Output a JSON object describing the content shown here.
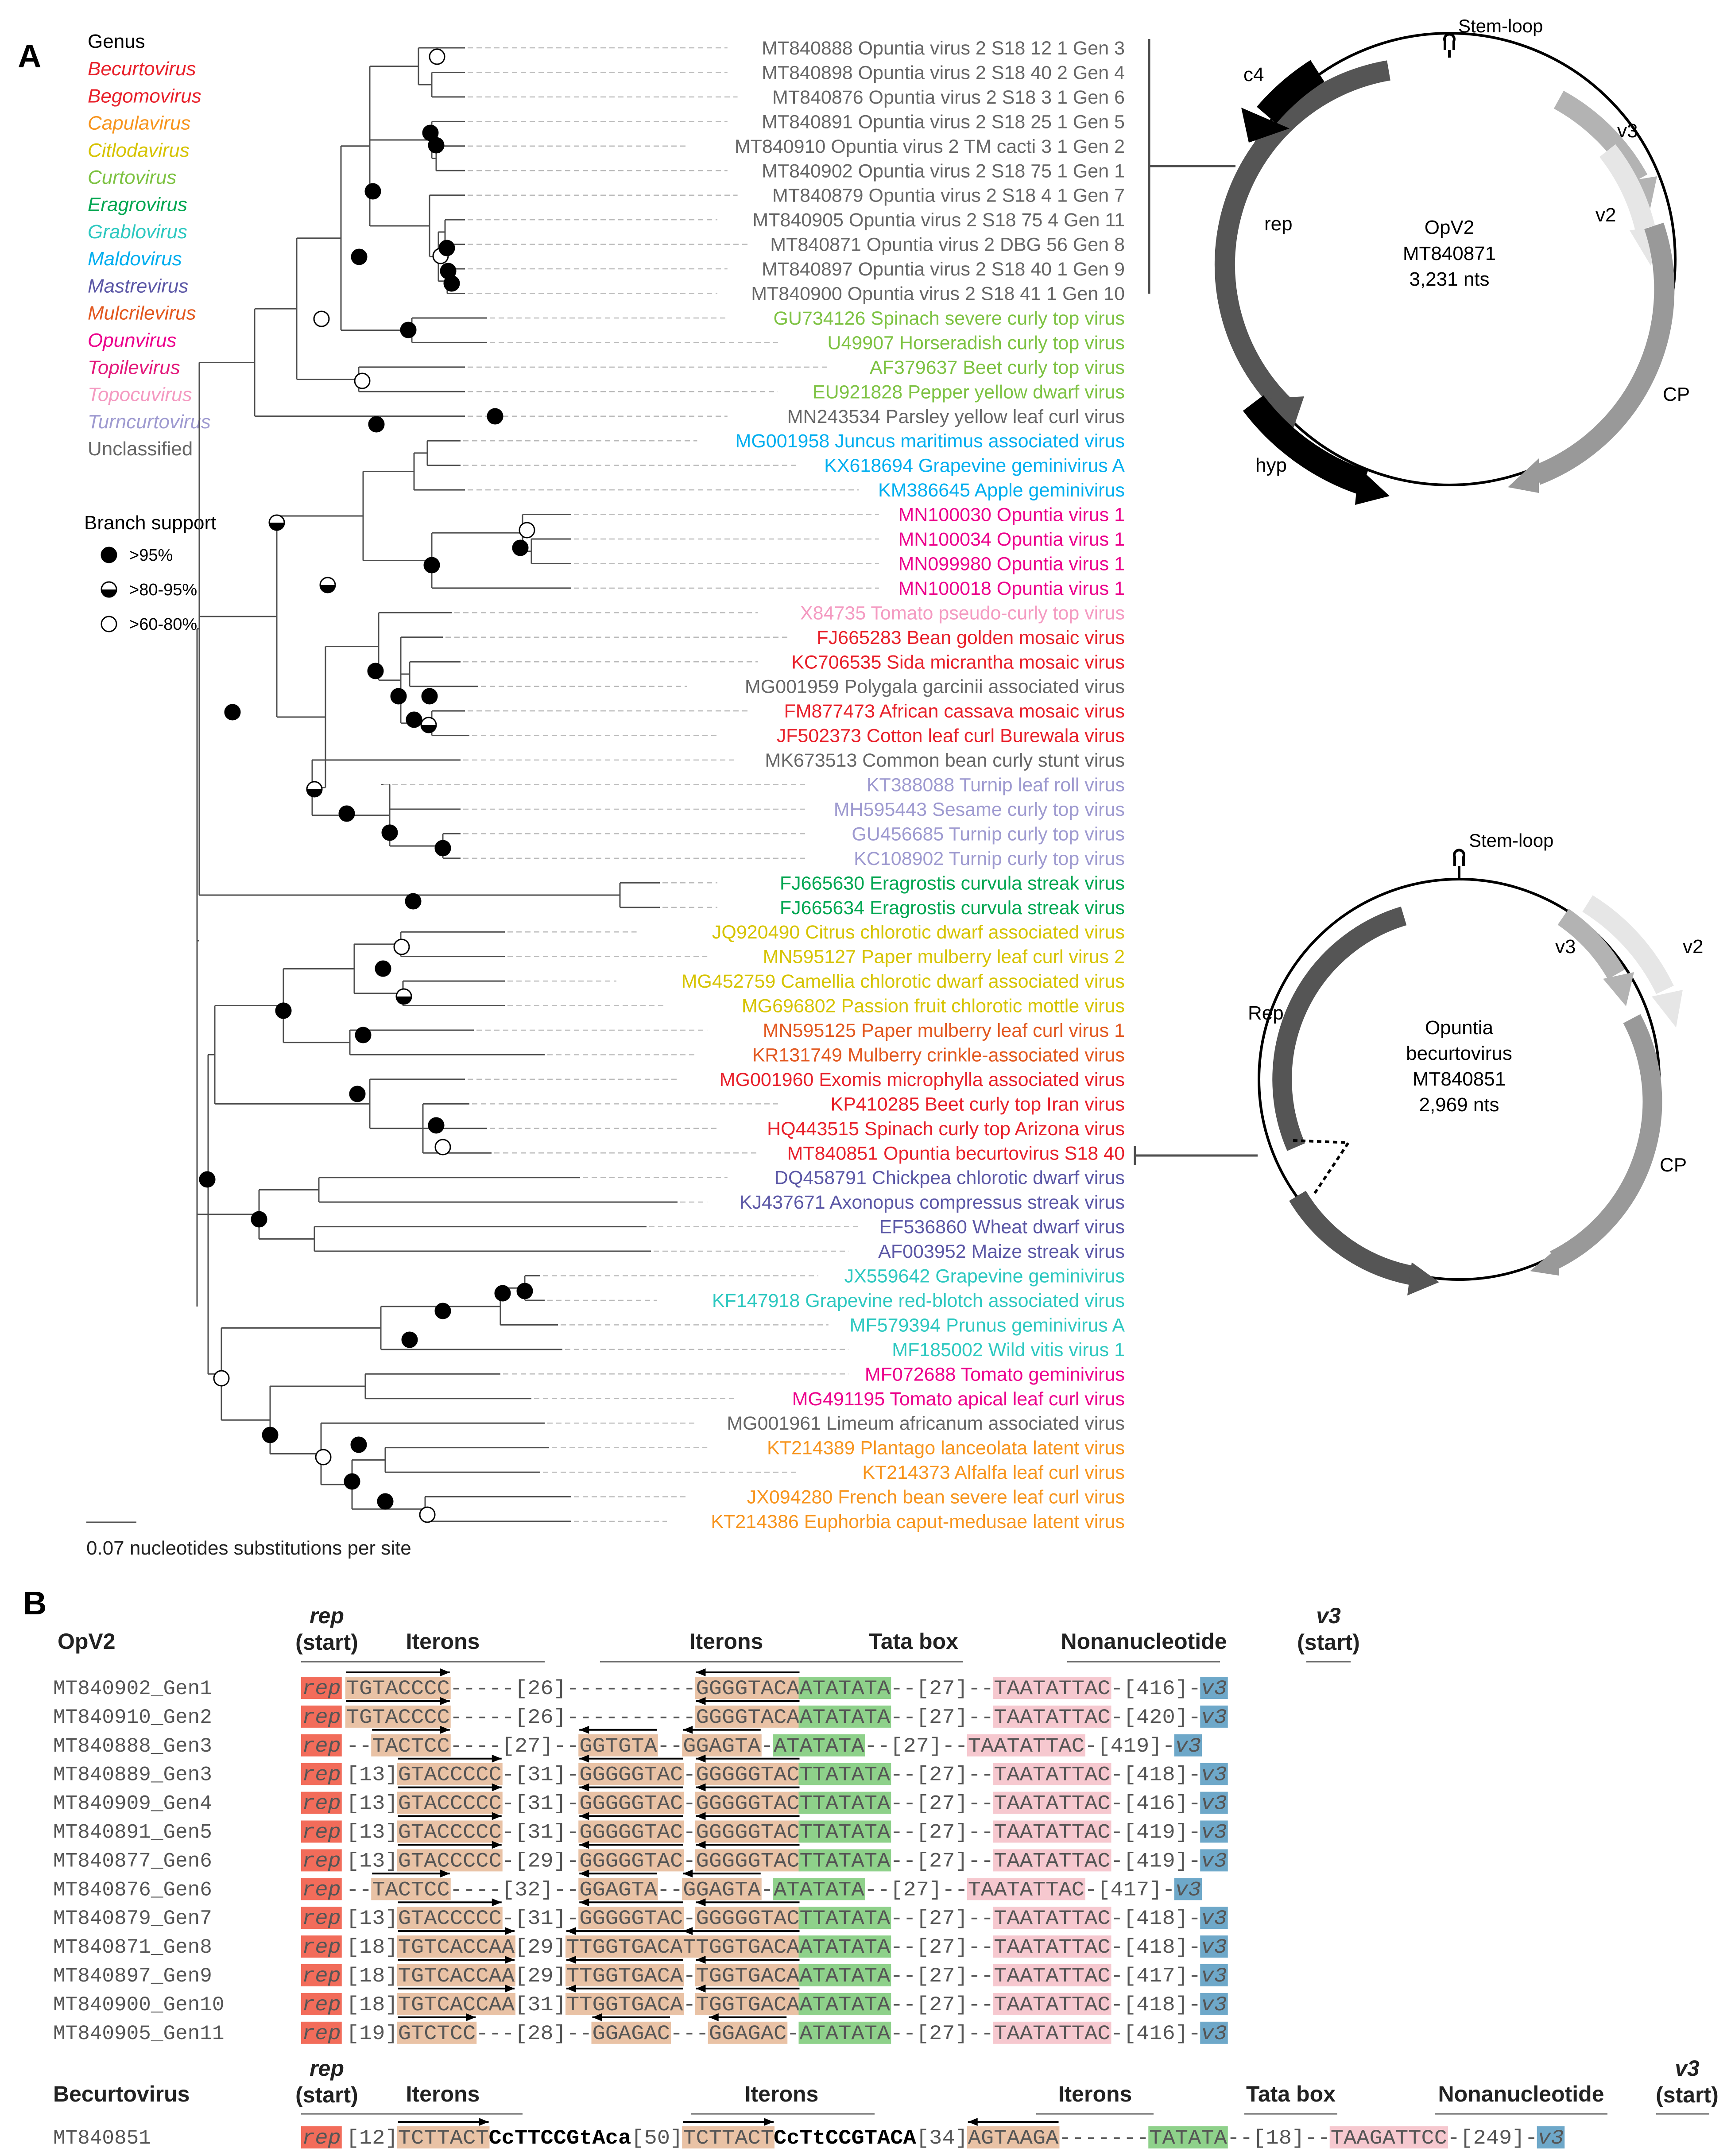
{
  "panels": {
    "a": "A",
    "b": "B"
  },
  "genus_legend": {
    "title": "Genus",
    "items": [
      {
        "name": "Becurtovirus",
        "color": "#e8202a"
      },
      {
        "name": "Begomovirus",
        "color": "#e8202a"
      },
      {
        "name": "Capulavirus",
        "color": "#f7941d"
      },
      {
        "name": "Citlodavirus",
        "color": "#d6c300"
      },
      {
        "name": "Curtovirus",
        "color": "#7dc242"
      },
      {
        "name": "Eragrovirus",
        "color": "#00a651"
      },
      {
        "name": "Grablovirus",
        "color": "#2dc8c0"
      },
      {
        "name": "Maldovirus",
        "color": "#00aeef"
      },
      {
        "name": "Mastrevirus",
        "color": "#5b57a6"
      },
      {
        "name": "Mulcrilevirus",
        "color": "#e2571e"
      },
      {
        "name": "Opunvirus",
        "color": "#ec008c"
      },
      {
        "name": "Topilevirus",
        "color": "#e3197b"
      },
      {
        "name": "Topocuvirus",
        "color": "#f49ac1"
      },
      {
        "name": "Turncurtovirus",
        "color": "#9e9ad0"
      },
      {
        "name": "Unclassified",
        "color": "#666666"
      }
    ]
  },
  "support_legend": {
    "title": "Branch support",
    "items": [
      {
        "label": ">95%",
        "fill": "full"
      },
      {
        "label": ">80-95%",
        "fill": "half"
      },
      {
        "label": ">60-80%",
        "fill": "empty"
      }
    ]
  },
  "scale_bar": {
    "label": "0.07 nucleotides substitutions per site"
  },
  "taxa": [
    {
      "label": "MT840888 Opuntia virus 2 S18 12 1 Gen 3",
      "color": "#666666"
    },
    {
      "label": "MT840898 Opuntia virus 2 S18 40 2 Gen 4",
      "color": "#666666"
    },
    {
      "label": "MT840876 Opuntia virus 2 S18 3 1 Gen 6",
      "color": "#666666"
    },
    {
      "label": "MT840891 Opuntia virus 2 S18 25 1 Gen 5",
      "color": "#666666"
    },
    {
      "label": "MT840910 Opuntia virus 2 TM cacti 3 1 Gen 2",
      "color": "#666666"
    },
    {
      "label": "MT840902 Opuntia virus 2 S18 75 1 Gen 1",
      "color": "#666666"
    },
    {
      "label": "MT840879 Opuntia virus 2 S18 4 1 Gen 7",
      "color": "#666666"
    },
    {
      "label": "MT840905 Opuntia virus 2 S18 75 4 Gen 11",
      "color": "#666666"
    },
    {
      "label": "MT840871 Opuntia virus 2 DBG 56 Gen 8",
      "color": "#666666"
    },
    {
      "label": "MT840897 Opuntia virus 2 S18 40 1 Gen 9",
      "color": "#666666"
    },
    {
      "label": "MT840900 Opuntia virus 2 S18 41 1 Gen 10",
      "color": "#666666"
    },
    {
      "label": "GU734126 Spinach severe curly top virus",
      "color": "#7dc242"
    },
    {
      "label": "U49907 Horseradish curly top virus",
      "color": "#7dc242"
    },
    {
      "label": "AF379637 Beet curly top virus",
      "color": "#7dc242"
    },
    {
      "label": "EU921828 Pepper yellow dwarf virus",
      "color": "#7dc242"
    },
    {
      "label": "MN243534 Parsley yellow leaf curl virus",
      "color": "#666666"
    },
    {
      "label": "MG001958 Juncus maritimus associated virus",
      "color": "#00aeef"
    },
    {
      "label": "KX618694 Grapevine geminivirus A",
      "color": "#00aeef"
    },
    {
      "label": "KM386645 Apple geminivirus",
      "color": "#00aeef"
    },
    {
      "label": "MN100030 Opuntia virus 1",
      "color": "#ec008c"
    },
    {
      "label": "MN100034 Opuntia virus 1",
      "color": "#ec008c"
    },
    {
      "label": "MN099980 Opuntia virus 1",
      "color": "#ec008c"
    },
    {
      "label": "MN100018 Opuntia virus 1",
      "color": "#ec008c"
    },
    {
      "label": "X84735 Tomato pseudo-curly top virus",
      "color": "#f49ac1"
    },
    {
      "label": "FJ665283 Bean golden mosaic virus",
      "color": "#e8202a"
    },
    {
      "label": "KC706535 Sida micrantha mosaic virus",
      "color": "#e8202a"
    },
    {
      "label": "MG001959 Polygala garcinii associated virus",
      "color": "#666666"
    },
    {
      "label": "FM877473 African cassava mosaic virus",
      "color": "#e8202a"
    },
    {
      "label": "JF502373 Cotton leaf curl Burewala virus",
      "color": "#e8202a"
    },
    {
      "label": "MK673513 Common bean curly stunt virus",
      "color": "#666666"
    },
    {
      "label": "KT388088 Turnip leaf roll virus",
      "color": "#9e9ad0"
    },
    {
      "label": "MH595443 Sesame curly top virus",
      "color": "#9e9ad0"
    },
    {
      "label": "GU456685 Turnip curly top virus",
      "color": "#9e9ad0"
    },
    {
      "label": "KC108902 Turnip curly top virus",
      "color": "#9e9ad0"
    },
    {
      "label": "FJ665630 Eragrostis curvula streak virus",
      "color": "#00a651"
    },
    {
      "label": "FJ665634 Eragrostis curvula streak virus",
      "color": "#00a651"
    },
    {
      "label": "JQ920490 Citrus chlorotic dwarf associated virus",
      "color": "#d6c300"
    },
    {
      "label": "MN595127 Paper mulberry leaf curl virus 2",
      "color": "#d6c300"
    },
    {
      "label": "MG452759 Camellia chlorotic dwarf associated virus",
      "color": "#d6c300"
    },
    {
      "label": "MG696802 Passion fruit chlorotic mottle virus",
      "color": "#d6c300"
    },
    {
      "label": "MN595125 Paper mulberry leaf curl virus 1",
      "color": "#e2571e"
    },
    {
      "label": "KR131749 Mulberry crinkle-associated virus",
      "color": "#e2571e"
    },
    {
      "label": "MG001960 Exomis microphylla associated virus",
      "color": "#e8202a"
    },
    {
      "label": "KP410285 Beet curly top Iran virus",
      "color": "#e8202a"
    },
    {
      "label": "HQ443515 Spinach curly top Arizona virus",
      "color": "#e8202a"
    },
    {
      "label": "MT840851 Opuntia becurtovirus S18 40",
      "color": "#e8202a"
    },
    {
      "label": "DQ458791 Chickpea chlorotic dwarf virus",
      "color": "#5b57a6"
    },
    {
      "label": "KJ437671 Axonopus compressus streak virus",
      "color": "#5b57a6"
    },
    {
      "label": "EF536860 Wheat dwarf virus",
      "color": "#5b57a6"
    },
    {
      "label": "AF003952 Maize streak virus",
      "color": "#5b57a6"
    },
    {
      "label": "JX559642 Grapevine geminivirus",
      "color": "#2dc8c0"
    },
    {
      "label": "KF147918 Grapevine red-blotch associated virus",
      "color": "#2dc8c0"
    },
    {
      "label": "MF579394 Prunus geminivirus A",
      "color": "#2dc8c0"
    },
    {
      "label": "MF185002 Wild vitis virus 1",
      "color": "#2dc8c0"
    },
    {
      "label": "MF072688 Tomato geminivirus",
      "color": "#ec008c"
    },
    {
      "label": "MG491195 Tomato apical leaf curl virus",
      "color": "#ec008c"
    },
    {
      "label": "MG001961 Limeum africanum associated virus",
      "color": "#666666"
    },
    {
      "label": "KT214389 Plantago lanceolata latent virus",
      "color": "#f7941d"
    },
    {
      "label": "KT214373 Alfalfa leaf curl virus",
      "color": "#f7941d"
    },
    {
      "label": "JX094280 French bean severe leaf curl virus",
      "color": "#f7941d"
    },
    {
      "label": "KT214386 Euphorbia caput-medusae latent virus",
      "color": "#f7941d"
    }
  ],
  "genome_opv2": {
    "stem_loop": "Stem-loop",
    "name": "OpV2",
    "accession": "MT840871",
    "size": "3,231 nts",
    "orfs": {
      "c4": "c4",
      "v3": "v3",
      "v2": "v2",
      "rep": "rep",
      "cp": "CP",
      "hyp": "hyp"
    }
  },
  "genome_becurto": {
    "stem_loop": "Stem-loop",
    "name_line1": "Opuntia",
    "name_line2": "becurtovirus",
    "accession": "MT840851",
    "size": "2,969 nts",
    "orfs": {
      "v3": "v3",
      "v2": "v2",
      "rep": "Rep",
      "cp": "CP"
    }
  },
  "alignment_opv2": {
    "group": "OpV2",
    "headers": {
      "rep_it": "rep",
      "rep_start": "(start)",
      "iterons1": "Iterons",
      "iterons2": "Iterons",
      "tata": "Tata box",
      "nona": "Nonanucleotide",
      "v3_it": "v3",
      "v3_start": "(start)"
    },
    "rep_tag": "rep",
    "v3_tag": "v3",
    "rows": [
      {
        "name": "MT840902_Gen1",
        "pre": "",
        "it1": "TGTACCCC",
        "mid": "-----[26]----------",
        "it2": "",
        "gap2": "",
        "it3": "GGGGTACA",
        "tata": "ATATATA",
        "g1": "--[27]--",
        "nona": "TAATATTAC",
        "g2": "-[416]-"
      },
      {
        "name": "MT840910_Gen2",
        "pre": "",
        "it1": "TGTACCCC",
        "mid": "-----[26]----------",
        "it2": "",
        "gap2": "",
        "it3": "GGGGTACA",
        "tata": "ATATATA",
        "g1": "--[27]--",
        "nona": "TAATATTAC",
        "g2": "-[420]-"
      },
      {
        "name": "MT840888_Gen3",
        "pre": "--",
        "it1": "TACTCC",
        "mid": "----[27]--",
        "it2": "GGTGTA",
        "gap2": "--",
        "it3": "GGAGTA",
        "tata": "-ATATATA",
        "g1": "--[27]--",
        "nona": "TAATATTAC",
        "g2": "-[419]-"
      },
      {
        "name": "MT840889_Gen3",
        "pre": "[13]",
        "it1": "GTACCCCC",
        "mid": "-[31]-",
        "it2": "GGGGGTAC",
        "gap2": "-",
        "it3": "GGGGGTAC",
        "tata": "TTATATA",
        "g1": "--[27]--",
        "nona": "TAATATTAC",
        "g2": "-[418]-"
      },
      {
        "name": "MT840909_Gen4",
        "pre": "[13]",
        "it1": "GTACCCCC",
        "mid": "-[31]-",
        "it2": "GGGGGTAC",
        "gap2": "-",
        "it3": "GGGGGTAC",
        "tata": "TTATATA",
        "g1": "--[27]--",
        "nona": "TAATATTAC",
        "g2": "-[416]-"
      },
      {
        "name": "MT840891_Gen5",
        "pre": "[13]",
        "it1": "GTACCCCC",
        "mid": "-[31]-",
        "it2": "GGGGGTAC",
        "gap2": "-",
        "it3": "GGGGGTAC",
        "tata": "TTATATA",
        "g1": "--[27]--",
        "nona": "TAATATTAC",
        "g2": "-[419]-"
      },
      {
        "name": "MT840877_Gen6",
        "pre": "[13]",
        "it1": "GTACCCCC",
        "mid": "-[29]-",
        "it2": "GGGGGTAC",
        "gap2": "-",
        "it3": "GGGGGTAC",
        "tata": "TTATATA",
        "g1": "--[27]--",
        "nona": "TAATATTAC",
        "g2": "-[419]-"
      },
      {
        "name": "MT840876_Gen6",
        "pre": "--",
        "it1": "TACTCC",
        "mid": "----[32]--",
        "it2": "GGAGTA",
        "gap2": "--",
        "it3": "GGAGTA",
        "tata": "-ATATATA",
        "g1": "--[27]--",
        "nona": "TAATATTAC",
        "g2": "-[417]-"
      },
      {
        "name": "MT840879_Gen7",
        "pre": "[13]",
        "it1": "GTACCCCC",
        "mid": "-[31]-",
        "it2": "GGGGGTAC",
        "gap2": "-",
        "it3": "GGGGGTAC",
        "tata": "TTATATA",
        "g1": "--[27]--",
        "nona": "TAATATTAC",
        "g2": "-[418]-"
      },
      {
        "name": "MT840871_Gen8",
        "pre": "[18]",
        "it1": "TGTCACCAA",
        "mid": "[29]",
        "it2": "TTGGTGACA",
        "gap2": "",
        "it3": "TTGGTGACA",
        "tata": "ATATATA",
        "g1": "--[27]--",
        "nona": "TAATATTAC",
        "g2": "-[418]-"
      },
      {
        "name": "MT840897_Gen9",
        "pre": "[18]",
        "it1": "TGTCACCAA",
        "mid": "[29]",
        "it2": "TTGGTGACA",
        "gap2": "-",
        "it3": "TGGTGACA",
        "tata": "ATATATA",
        "g1": "--[27]--",
        "nona": "TAATATTAC",
        "g2": "-[417]-"
      },
      {
        "name": "MT840900_Gen10",
        "pre": "[18]",
        "it1": "TGTCACCAA",
        "mid": "[31]",
        "it2": "TTGGTGACA",
        "gap2": "-",
        "it3": "TGGTGACA",
        "tata": "ATATATA",
        "g1": "--[27]--",
        "nona": "TAATATTAC",
        "g2": "-[418]-"
      },
      {
        "name": "MT840905_Gen11",
        "pre": "[19]",
        "it1": "GTCTCC",
        "mid": "---[28]--",
        "it2": "GGAGAC",
        "gap2": "---",
        "it3": "GGAGAC",
        "tata": "-ATATATA",
        "g1": "--[27]--",
        "nona": "TAATATTAC",
        "g2": "-[416]-"
      }
    ]
  },
  "alignment_becurto": {
    "group": "Becurtovirus",
    "headers": {
      "rep_it": "rep",
      "rep_start": "(start)",
      "iterons1": "Iterons",
      "iterons2": "Iterons",
      "iterons3": "Iterons",
      "tata": "Tata box",
      "nona": "Nonanucleotide",
      "v3_it": "v3",
      "v3_start": "(start)"
    },
    "row": {
      "name": "MT840851",
      "rep_tag": "rep",
      "pre": "[12]",
      "it1": "TCTTACT",
      "bold1": "CcTTCCGtAca",
      "mid1": "[50]",
      "it2": "TCTTACT",
      "bold2": "CcTtCCGTACA",
      "mid2": "[34]",
      "it3": "AGTAAGA",
      "gap": "-------",
      "tata": "TATATA",
      "g1": "--[18]--",
      "nona": "TAAGATTCC",
      "g2": "-[249]-",
      "v3_tag": "v3"
    }
  }
}
